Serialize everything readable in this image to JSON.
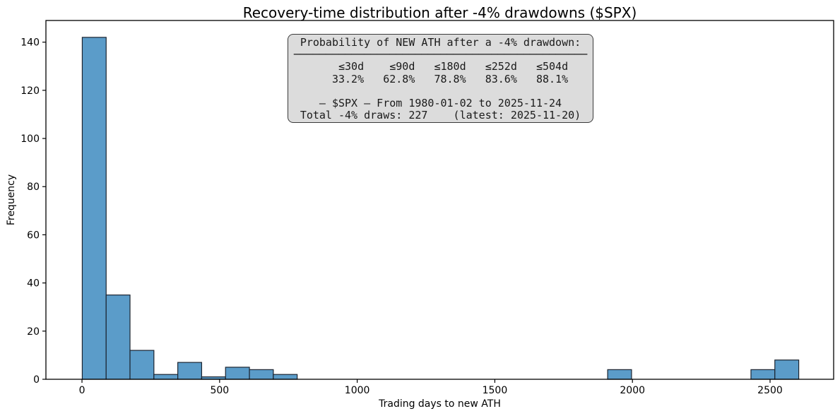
{
  "title": "Recovery-time distribution after -4% drawdowns ($SPX)",
  "axes": {
    "xlabel": "Trading days to new ATH",
    "ylabel": "Frequency"
  },
  "colors": {
    "bar_fill": "#5B9CC9",
    "bar_edge": "#1B2430",
    "spine": "#000000",
    "tick_text": "#000000",
    "annotation_bg": "#DCDCDC",
    "annotation_border": "#3A3A3A"
  },
  "annotation": {
    "title_line": "Probability of NEW ATH after a -4% drawdown:",
    "thresholds": [
      "≤30d",
      "≤90d",
      "≤180d",
      "≤252d",
      "≤504d"
    ],
    "probabilities": [
      "33.2%",
      "62.8%",
      "78.8%",
      "83.6%",
      "88.1%"
    ],
    "series_line": "— $SPX — From 1980-01-02 to 2025-11-24",
    "total_line": "Total -4% draws: 227    (latest: 2025-11-20)",
    "lines": [
      "Probability of NEW ATH after a -4% drawdown:",
      "──────────────────────────────────────────────",
      "    ≤30d    ≤90d   ≤180d   ≤252d   ≤504d",
      "   33.2%   62.8%   78.8%   83.6%   88.1%",
      " ",
      "— $SPX — From 1980-01-02 to 2025-11-24",
      "Total -4% draws: 227    (latest: 2025-11-20)"
    ]
  },
  "chart_data": {
    "type": "bar",
    "subtype": "histogram",
    "title": "Recovery-time distribution after -4% drawdowns ($SPX)",
    "xlabel": "Trading days to new ATH",
    "ylabel": "Frequency",
    "xlim": [
      -131,
      2731
    ],
    "ylim": [
      0,
      149
    ],
    "x_ticks": [
      0,
      500,
      1000,
      1500,
      2000,
      2500
    ],
    "y_ticks": [
      0,
      20,
      40,
      60,
      80,
      100,
      120,
      140
    ],
    "grid": false,
    "legend": false,
    "bin_width": 86.8,
    "bins": [
      {
        "x0": 1.0,
        "x1": 87.8,
        "count": 142
      },
      {
        "x0": 87.8,
        "x1": 174.5,
        "count": 35
      },
      {
        "x0": 174.5,
        "x1": 261.3,
        "count": 12
      },
      {
        "x0": 261.3,
        "x1": 348.1,
        "count": 2
      },
      {
        "x0": 348.1,
        "x1": 434.8,
        "count": 7
      },
      {
        "x0": 434.8,
        "x1": 521.6,
        "count": 1
      },
      {
        "x0": 521.6,
        "x1": 608.4,
        "count": 5
      },
      {
        "x0": 608.4,
        "x1": 695.2,
        "count": 4
      },
      {
        "x0": 695.2,
        "x1": 781.9,
        "count": 2
      },
      {
        "x0": 1909.9,
        "x1": 1996.7,
        "count": 4
      },
      {
        "x0": 2430.6,
        "x1": 2517.4,
        "count": 4
      },
      {
        "x0": 2517.4,
        "x1": 2604.2,
        "count": 8
      }
    ]
  }
}
